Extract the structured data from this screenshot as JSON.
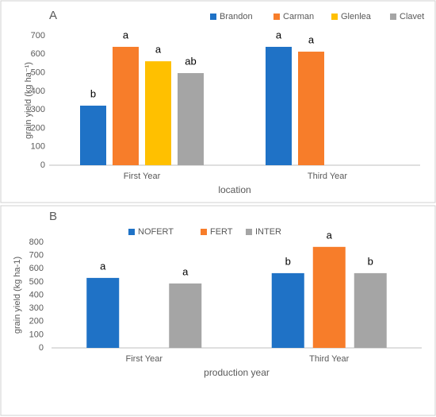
{
  "chart_data": [
    {
      "type": "bar",
      "panel": "A",
      "ylabel": "grain yield (kg ha⁻¹)",
      "xlabel": "location",
      "categories": [
        "First Year",
        "Third Year"
      ],
      "series": [
        {
          "name": "Brandon",
          "color": "#1f72c6",
          "values": [
            322,
            640
          ],
          "letters": [
            "b",
            "a"
          ]
        },
        {
          "name": "Carman",
          "color": "#f77d2a",
          "values": [
            640,
            614
          ],
          "letters": [
            "a",
            "a"
          ]
        },
        {
          "name": "Glenlea",
          "color": "#ffc000",
          "values": [
            562,
            null
          ],
          "letters": [
            "a",
            null
          ]
        },
        {
          "name": "Clavet",
          "color": "#a5a5a5",
          "values": [
            498,
            null
          ],
          "letters": [
            "ab",
            null
          ]
        }
      ],
      "ylim": [
        0,
        700
      ],
      "yticks": [
        0,
        100,
        200,
        300,
        400,
        500,
        600,
        700
      ],
      "grid": false
    },
    {
      "type": "bar",
      "panel": "B",
      "ylabel": "grain yield (kg ha-1)",
      "xlabel": "production year",
      "categories": [
        "First Year",
        "Third Year"
      ],
      "series": [
        {
          "name": "NOFERT",
          "color": "#1f72c6",
          "values": [
            530,
            566
          ],
          "letters": [
            "a",
            "b"
          ]
        },
        {
          "name": "FERT",
          "color": "#f77d2a",
          "values": [
            null,
            765
          ],
          "letters": [
            null,
            "a"
          ]
        },
        {
          "name": "INTER",
          "color": "#a5a5a5",
          "values": [
            488,
            566
          ],
          "letters": [
            "a",
            "b"
          ]
        }
      ],
      "ylim": [
        0,
        800
      ],
      "yticks": [
        0,
        100,
        200,
        300,
        400,
        500,
        600,
        700,
        800
      ],
      "grid": false
    }
  ]
}
